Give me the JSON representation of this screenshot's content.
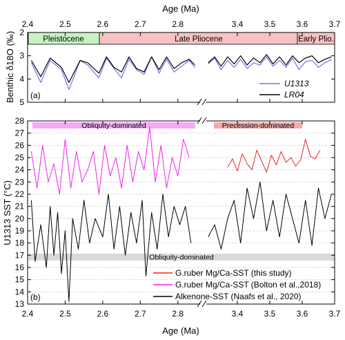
{
  "chart_data": [
    {
      "panel_id": "(a)",
      "type": "line",
      "xlabel_top": "Age (Ma)",
      "ylabel": "Benthic δ18O (‰)",
      "ylim": [
        5,
        2
      ],
      "y_reversed": true,
      "x_ticks_left": [
        "2.4",
        "2.5",
        "2.6",
        "2.7",
        "2.8"
      ],
      "x_ticks_right": [
        "3.4",
        "3.5",
        "3.6",
        "3.7"
      ],
      "y_ticks": [
        "2",
        "3",
        "4",
        "5"
      ],
      "axis_break": {
        "left_segment_xlim": [
          2.4,
          2.85
        ],
        "right_segment_xlim": [
          3.3,
          3.7
        ]
      },
      "epochs": [
        {
          "label": "Pleistocene",
          "age_from": 2.4,
          "age_to": 2.58,
          "color": "#c6f3c2"
        },
        {
          "label": "Late Pliocene",
          "age_from": 2.58,
          "age_to": 3.6,
          "color": "#f6c2c4"
        },
        {
          "label": "Early Plio.",
          "age_from": 3.6,
          "age_to": 3.7,
          "color": "#f6c2c4"
        }
      ],
      "legend": {
        "placement": "bottom-right",
        "entries": [
          "U1313",
          "LR04"
        ]
      },
      "series": [
        {
          "name": "U1313",
          "color": "#6f74ee",
          "x": [
            2.41,
            2.435,
            2.46,
            2.49,
            2.51,
            2.54,
            2.56,
            2.59,
            2.61,
            2.63,
            2.65,
            2.67,
            2.69,
            2.71,
            2.73,
            2.75,
            2.77,
            2.79,
            2.81,
            2.83,
            2.845,
            3.31,
            3.33,
            3.35,
            3.37,
            3.39,
            3.41,
            3.43,
            3.45,
            3.47,
            3.49,
            3.51,
            3.53,
            3.55,
            3.57,
            3.59,
            3.61,
            3.63,
            3.65,
            3.67,
            3.69
          ],
          "values": [
            3.3,
            4.15,
            3.2,
            3.6,
            4.45,
            3.2,
            3.4,
            3.95,
            3.1,
            3.55,
            3.95,
            3.15,
            3.6,
            3.8,
            3.05,
            3.75,
            3.15,
            3.7,
            3.45,
            3.2,
            3.5,
            3.35,
            3.1,
            3.6,
            3.2,
            3.5,
            3.15,
            3.55,
            3.3,
            3.4,
            3.05,
            3.45,
            3.2,
            3.5,
            3.1,
            3.6,
            3.25,
            3.2,
            3.5,
            3.3,
            3.15
          ]
        },
        {
          "name": "LR04",
          "color": "#000000",
          "x": [
            2.41,
            2.435,
            2.46,
            2.49,
            2.51,
            2.54,
            2.56,
            2.59,
            2.61,
            2.63,
            2.65,
            2.67,
            2.69,
            2.71,
            2.73,
            2.75,
            2.77,
            2.79,
            2.81,
            2.83,
            2.845,
            3.31,
            3.33,
            3.35,
            3.37,
            3.39,
            3.41,
            3.43,
            3.45,
            3.47,
            3.49,
            3.51,
            3.53,
            3.55,
            3.57,
            3.59,
            3.61,
            3.63,
            3.65,
            3.67,
            3.69
          ],
          "values": [
            3.2,
            3.9,
            3.1,
            3.5,
            4.15,
            3.2,
            3.3,
            3.75,
            3.05,
            3.5,
            3.7,
            3.05,
            3.55,
            3.7,
            3.05,
            3.6,
            3.05,
            3.55,
            3.3,
            3.15,
            3.4,
            3.3,
            3.05,
            3.45,
            3.05,
            3.35,
            3.0,
            3.4,
            3.1,
            3.3,
            2.95,
            3.35,
            3.05,
            3.4,
            3.0,
            3.3,
            3.1,
            3.0,
            3.3,
            3.15,
            3.05
          ]
        }
      ]
    },
    {
      "panel_id": "(b)",
      "type": "line",
      "xlabel": "Age (Ma)",
      "ylabel": "U1313 SST (°C)",
      "ylim": [
        13,
        28
      ],
      "grid": "horizontal dashed",
      "x_ticks_left": [
        "2.4",
        "2.5",
        "2.6",
        "2.7",
        "2.8"
      ],
      "x_ticks_right": [
        "3.4",
        "3.5",
        "3.6",
        "3.7"
      ],
      "y_ticks": [
        "13",
        "14",
        "15",
        "16",
        "17",
        "18",
        "19",
        "20",
        "21",
        "22",
        "23",
        "24",
        "25",
        "26",
        "27",
        "28"
      ],
      "axis_break": {
        "left_segment_xlim": [
          2.4,
          2.85
        ],
        "right_segment_xlim": [
          3.3,
          3.7
        ]
      },
      "bands": [
        {
          "label": "Obliquity-dominated",
          "age_from": 2.41,
          "age_to": 2.835,
          "color": "#f4aaf4"
        },
        {
          "label": "Precession-dominated",
          "age_from": 3.36,
          "age_to": 3.66,
          "color": "#f4aaaa"
        },
        {
          "label": "Obliquity-dominated",
          "age_from": 2.4,
          "age_to": 3.7,
          "color": "#d9d9d9"
        }
      ],
      "legend": {
        "placement": "bottom-right",
        "entries": [
          "G.ruber Mg/Ca-SST (this study)",
          "G.ruber Mg/Ca-SST (Bolton et al.,2018)",
          "Alkenone-SST (Naafs et al., 2020)"
        ]
      },
      "series": [
        {
          "name": "G.ruber Mg/Ca-SST (this study)",
          "color": "#ee2222",
          "x": [
            3.37,
            3.385,
            3.4,
            3.415,
            3.43,
            3.445,
            3.46,
            3.475,
            3.49,
            3.505,
            3.52,
            3.535,
            3.55,
            3.565,
            3.58,
            3.595,
            3.61,
            3.625,
            3.64,
            3.655
          ],
          "values": [
            24.2,
            24.9,
            23.9,
            25.3,
            24.5,
            24.0,
            25.6,
            24.7,
            23.8,
            25.2,
            24.4,
            25.5,
            24.6,
            25.0,
            24.3,
            24.8,
            26.5,
            25.1,
            24.9,
            25.6
          ]
        },
        {
          "name": "G.ruber Mg/Ca-SST (Bolton et al.,2018)",
          "color": "#ee22ee",
          "x": [
            2.41,
            2.425,
            2.44,
            2.455,
            2.47,
            2.485,
            2.5,
            2.515,
            2.53,
            2.545,
            2.56,
            2.575,
            2.59,
            2.605,
            2.62,
            2.635,
            2.65,
            2.665,
            2.68,
            2.695,
            2.71,
            2.725,
            2.74,
            2.755,
            2.77,
            2.785,
            2.8,
            2.815,
            2.83
          ],
          "values": [
            25.5,
            22.5,
            26.0,
            23.0,
            24.5,
            22.0,
            26.5,
            22.5,
            25.5,
            23.0,
            24.0,
            25.5,
            22.0,
            26.0,
            23.5,
            25.0,
            22.5,
            26.0,
            23.0,
            25.5,
            24.0,
            27.5,
            23.0,
            26.0,
            22.5,
            25.0,
            23.5,
            26.5,
            25.0
          ]
        },
        {
          "name": "Alkenone-SST (Naafs et al., 2020)",
          "color": "#000000",
          "x": [
            2.41,
            2.42,
            2.435,
            2.45,
            2.46,
            2.47,
            2.48,
            2.49,
            2.5,
            2.51,
            2.52,
            2.535,
            2.55,
            2.565,
            2.58,
            2.6,
            2.615,
            2.63,
            2.645,
            2.66,
            2.675,
            2.69,
            2.705,
            2.715,
            2.73,
            2.745,
            2.76,
            2.775,
            2.79,
            2.805,
            2.82,
            2.835,
            3.31,
            3.33,
            3.35,
            3.37,
            3.39,
            3.41,
            3.43,
            3.45,
            3.47,
            3.49,
            3.51,
            3.53,
            3.55,
            3.57,
            3.59,
            3.61,
            3.63,
            3.65,
            3.67,
            3.69
          ],
          "values": [
            21.5,
            16.5,
            19.5,
            16.0,
            21.0,
            17.0,
            20.5,
            15.5,
            19.0,
            13.2,
            20.0,
            17.5,
            21.5,
            18.0,
            20.0,
            18.5,
            22.0,
            17.5,
            21.0,
            17.0,
            20.5,
            18.0,
            21.5,
            15.3,
            20.5,
            17.5,
            22.0,
            18.5,
            21.0,
            19.5,
            21.0,
            18.0,
            18.5,
            19.5,
            17.5,
            20.0,
            21.5,
            18.0,
            22.5,
            20.0,
            23.0,
            19.0,
            21.5,
            18.5,
            22.0,
            20.0,
            18.0,
            21.5,
            17.8,
            22.5,
            20.0,
            22.0
          ]
        }
      ]
    }
  ]
}
